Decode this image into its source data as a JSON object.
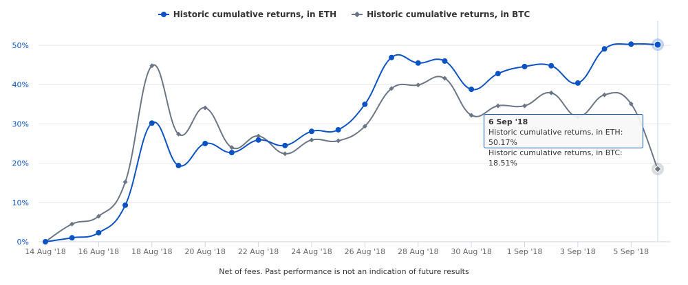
{
  "chart_data": {
    "type": "line",
    "title": "",
    "xlabel": "",
    "ylabel": "",
    "x": [
      "14 Aug '18",
      "15 Aug '18",
      "16 Aug '18",
      "17 Aug '18",
      "18 Aug '18",
      "19 Aug '18",
      "20 Aug '18",
      "21 Aug '18",
      "22 Aug '18",
      "23 Aug '18",
      "24 Aug '18",
      "25 Aug '18",
      "26 Aug '18",
      "27 Aug '18",
      "28 Aug '18",
      "29 Aug '18",
      "30 Aug '18",
      "31 Aug '18",
      "1 Sep '18",
      "2 Sep '18",
      "3 Sep '18",
      "4 Sep '18",
      "5 Sep '18",
      "6 Sep '18"
    ],
    "x_tick_labels": [
      "14 Aug '18",
      "16 Aug '18",
      "18 Aug '18",
      "20 Aug '18",
      "22 Aug '18",
      "24 Aug '18",
      "26 Aug '18",
      "28 Aug '18",
      "30 Aug '18",
      "1 Sep '18",
      "3 Sep '18",
      "5 Sep '18"
    ],
    "y_tick_labels": [
      "0%",
      "10%",
      "20%",
      "30%",
      "40%",
      "50%"
    ],
    "ylim": [
      0,
      50
    ],
    "grid": true,
    "legend_placement": "top-center",
    "series": [
      {
        "name": "Historic cumulative returns, in ETH",
        "color": "#0b52c4",
        "marker": "circle",
        "values": [
          0,
          1.0,
          2.3,
          9.3,
          30.2,
          19.4,
          25.0,
          22.7,
          25.9,
          24.5,
          28.1,
          28.5,
          35.0,
          46.9,
          45.5,
          46.0,
          38.8,
          42.8,
          44.6,
          44.8,
          40.4,
          49.1,
          50.3,
          50.17
        ]
      },
      {
        "name": "Historic cumulative returns, in BTC",
        "color": "#6b7685",
        "marker": "diamond",
        "values": [
          0,
          4.5,
          6.5,
          15.2,
          44.8,
          27.4,
          34.1,
          24.0,
          26.9,
          22.4,
          25.9,
          25.7,
          29.4,
          39.0,
          39.9,
          41.6,
          32.2,
          34.6,
          34.6,
          37.9,
          31.8,
          37.4,
          35.1,
          18.51
        ]
      }
    ],
    "tooltip": {
      "date": "6 Sep '18",
      "line1": "Historic cumulative returns, in ETH: 50.17%",
      "line2": "Historic cumulative returns, in BTC: 18.51%"
    },
    "footnote": "Net of fees. Past performance is not an indication of future results"
  }
}
